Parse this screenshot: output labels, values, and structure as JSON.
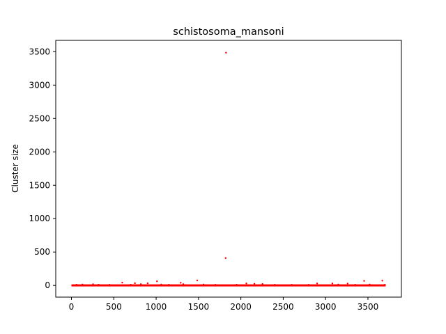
{
  "chart_data": {
    "type": "scatter",
    "title": "schistosoma_mansoni",
    "xlabel": "",
    "ylabel": "Cluster size",
    "xlim": [
      -185,
      3895
    ],
    "ylim": [
      -175,
      3670
    ],
    "xticks": [
      0,
      500,
      1000,
      1500,
      2000,
      2500,
      3000,
      3500
    ],
    "yticks": [
      0,
      500,
      1000,
      1500,
      2000,
      2500,
      3000,
      3500
    ],
    "grid": false,
    "legend": "none",
    "marker_color": "#ff0000",
    "baseline": {
      "x_start": 0,
      "x_end": 3710,
      "y": 1
    },
    "series": [
      {
        "points": [
          [
            1825,
            3485
          ],
          [
            1820,
            410
          ],
          [
            1485,
            75
          ],
          [
            3670,
            72
          ],
          [
            3455,
            68
          ],
          [
            1010,
            62
          ],
          [
            600,
            42
          ],
          [
            1290,
            40
          ],
          [
            750,
            34
          ],
          [
            900,
            32
          ],
          [
            2065,
            30
          ],
          [
            2900,
            30
          ],
          [
            3080,
            30
          ],
          [
            3260,
            28
          ],
          [
            2160,
            25
          ],
          [
            2255,
            22
          ],
          [
            1320,
            20
          ],
          [
            820,
            20
          ],
          [
            255,
            18
          ],
          [
            130,
            15
          ],
          [
            60,
            12
          ],
          [
            1060,
            14
          ],
          [
            1560,
            14
          ],
          [
            1950,
            12
          ],
          [
            2600,
            10
          ],
          [
            3700,
            12
          ],
          [
            3520,
            14
          ],
          [
            320,
            12
          ],
          [
            450,
            10
          ],
          [
            700,
            12
          ],
          [
            1150,
            10
          ],
          [
            1700,
            10
          ],
          [
            2400,
            10
          ],
          [
            2800,
            10
          ],
          [
            3350,
            10
          ],
          [
            3150,
            14
          ]
        ]
      }
    ]
  }
}
